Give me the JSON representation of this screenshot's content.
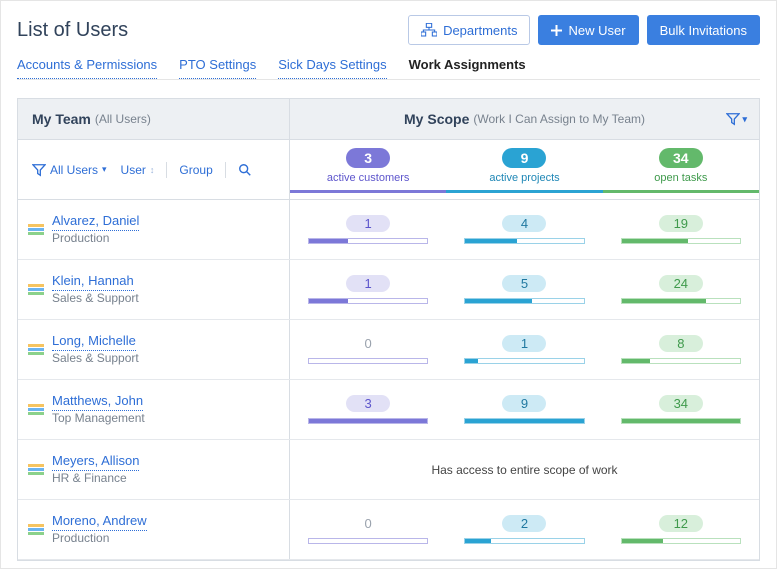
{
  "colors": {
    "purple": "#7c78d8",
    "blue": "#2aa3d3",
    "green": "#63b96b",
    "link": "#2e6ed6"
  },
  "header": {
    "title": "List of Users",
    "departments_btn": "Departments",
    "new_user_btn": "New User",
    "bulk_btn": "Bulk Invitations"
  },
  "tabs": {
    "accounts": "Accounts & Permissions",
    "pto": "PTO Settings",
    "sick": "Sick Days Settings",
    "work": "Work Assignments"
  },
  "teamHead": {
    "title": "My Team",
    "sub": "(All Users)"
  },
  "scopeHead": {
    "title": "My Scope",
    "sub": "(Work I Can Assign to My Team)"
  },
  "toolbar": {
    "all_users": "All Users",
    "user": "User",
    "group": "Group"
  },
  "scopeTotals": {
    "customers": {
      "value": "3",
      "label": "active customers"
    },
    "projects": {
      "value": "9",
      "label": "active projects"
    },
    "tasks": {
      "value": "34",
      "label": "open tasks"
    }
  },
  "rows": [
    {
      "name": "Alvarez, Daniel",
      "dept": "Production",
      "customers": {
        "value": "1",
        "pct": 33
      },
      "projects": {
        "value": "4",
        "pct": 44
      },
      "tasks": {
        "value": "19",
        "pct": 56
      }
    },
    {
      "name": "Klein, Hannah",
      "dept": "Sales & Support",
      "customers": {
        "value": "1",
        "pct": 33
      },
      "projects": {
        "value": "5",
        "pct": 56
      },
      "tasks": {
        "value": "24",
        "pct": 71
      }
    },
    {
      "name": "Long, Michelle",
      "dept": "Sales & Support",
      "customers": {
        "value": "0",
        "pct": 0
      },
      "projects": {
        "value": "1",
        "pct": 11
      },
      "tasks": {
        "value": "8",
        "pct": 24
      }
    },
    {
      "name": "Matthews, John",
      "dept": "Top Management",
      "customers": {
        "value": "3",
        "pct": 100
      },
      "projects": {
        "value": "9",
        "pct": 100
      },
      "tasks": {
        "value": "34",
        "pct": 100
      }
    },
    {
      "name": "Meyers, Allison",
      "dept": "HR & Finance",
      "fullScope": "Has access to entire scope of work"
    },
    {
      "name": "Moreno, Andrew",
      "dept": "Production",
      "customers": {
        "value": "0",
        "pct": 0
      },
      "projects": {
        "value": "2",
        "pct": 22
      },
      "tasks": {
        "value": "12",
        "pct": 35
      }
    }
  ]
}
